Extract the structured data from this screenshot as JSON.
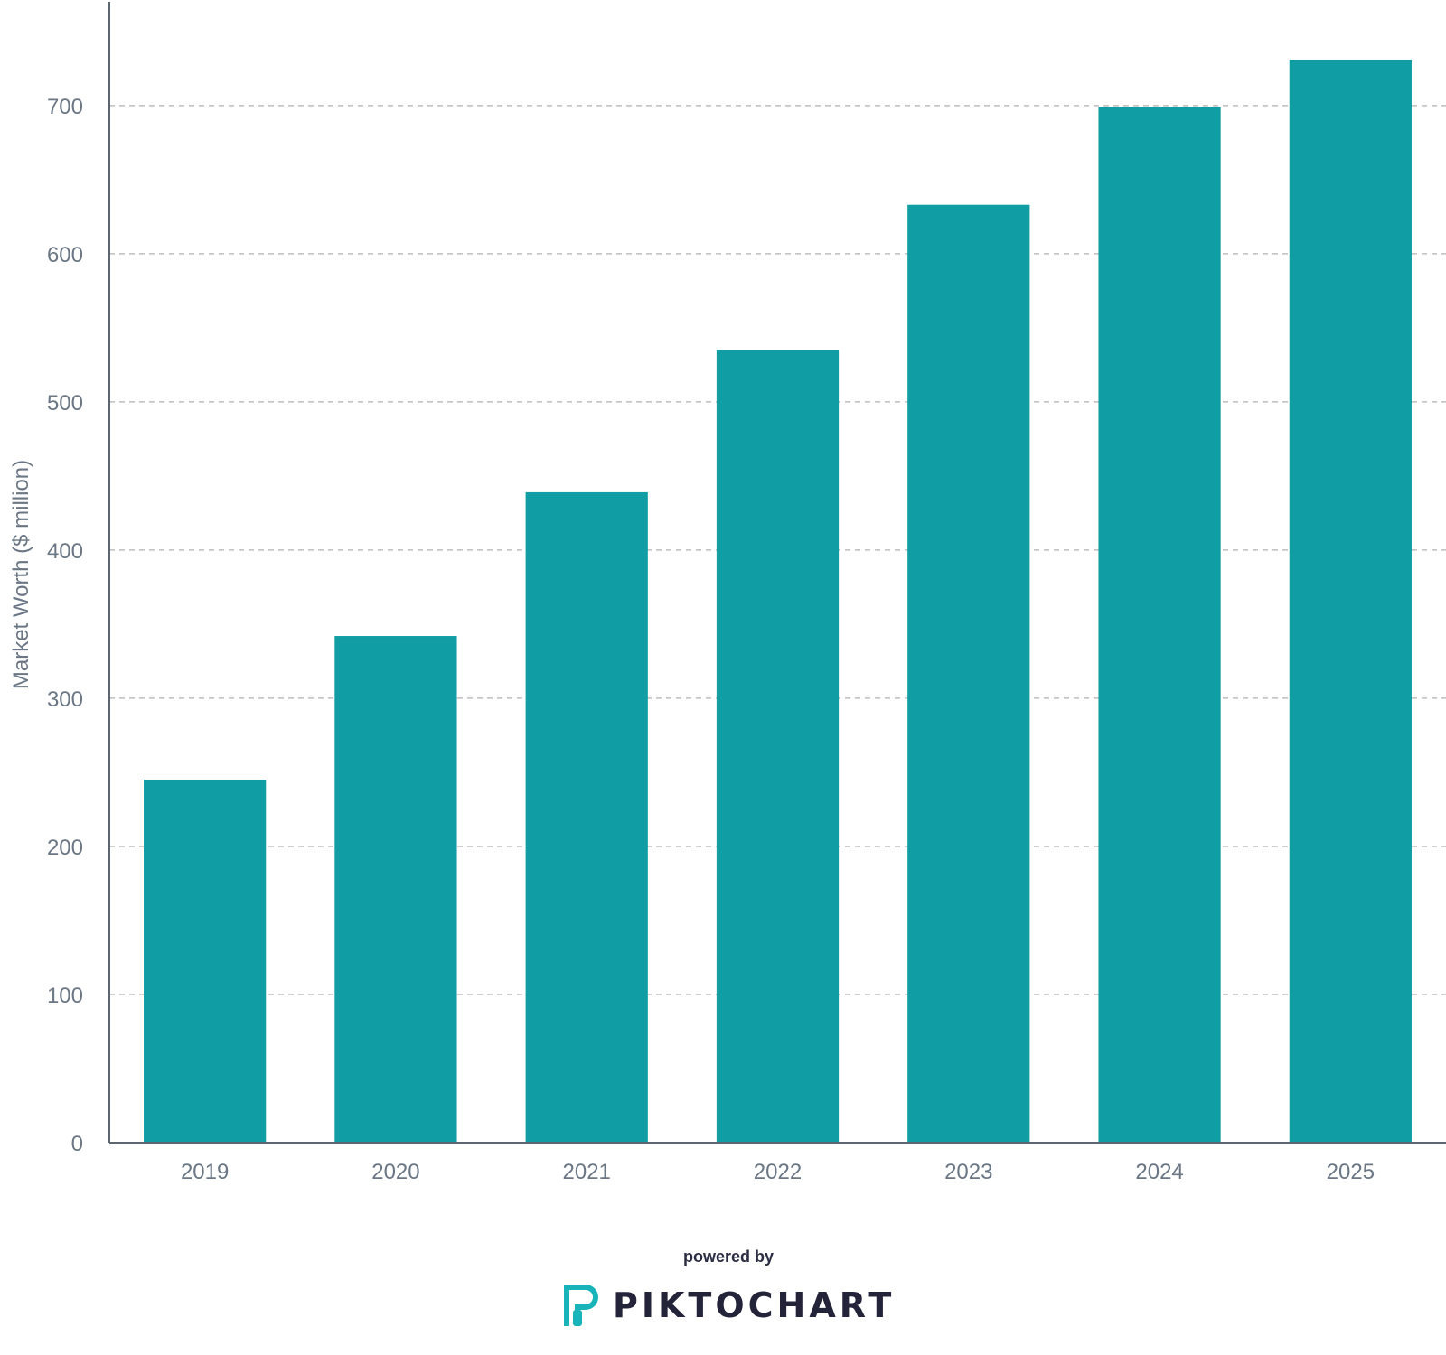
{
  "chart_data": {
    "type": "bar",
    "categories": [
      "2019",
      "2020",
      "2021",
      "2022",
      "2023",
      "2024",
      "2025"
    ],
    "values": [
      245,
      342,
      439,
      535,
      633,
      699,
      731
    ],
    "ylabel": "Market Worth ($ million)",
    "ylim": [
      0,
      770
    ],
    "yticks": [
      0,
      100,
      200,
      300,
      400,
      500,
      600,
      700
    ],
    "grid": true,
    "bar_color": "#109da3",
    "grid_color": "#bdbdbd",
    "axis_color": "#5c6670"
  },
  "footer": {
    "powered_by": "powered by",
    "brand": "PIKTOCHART",
    "logo_color": "#19b3ba"
  }
}
